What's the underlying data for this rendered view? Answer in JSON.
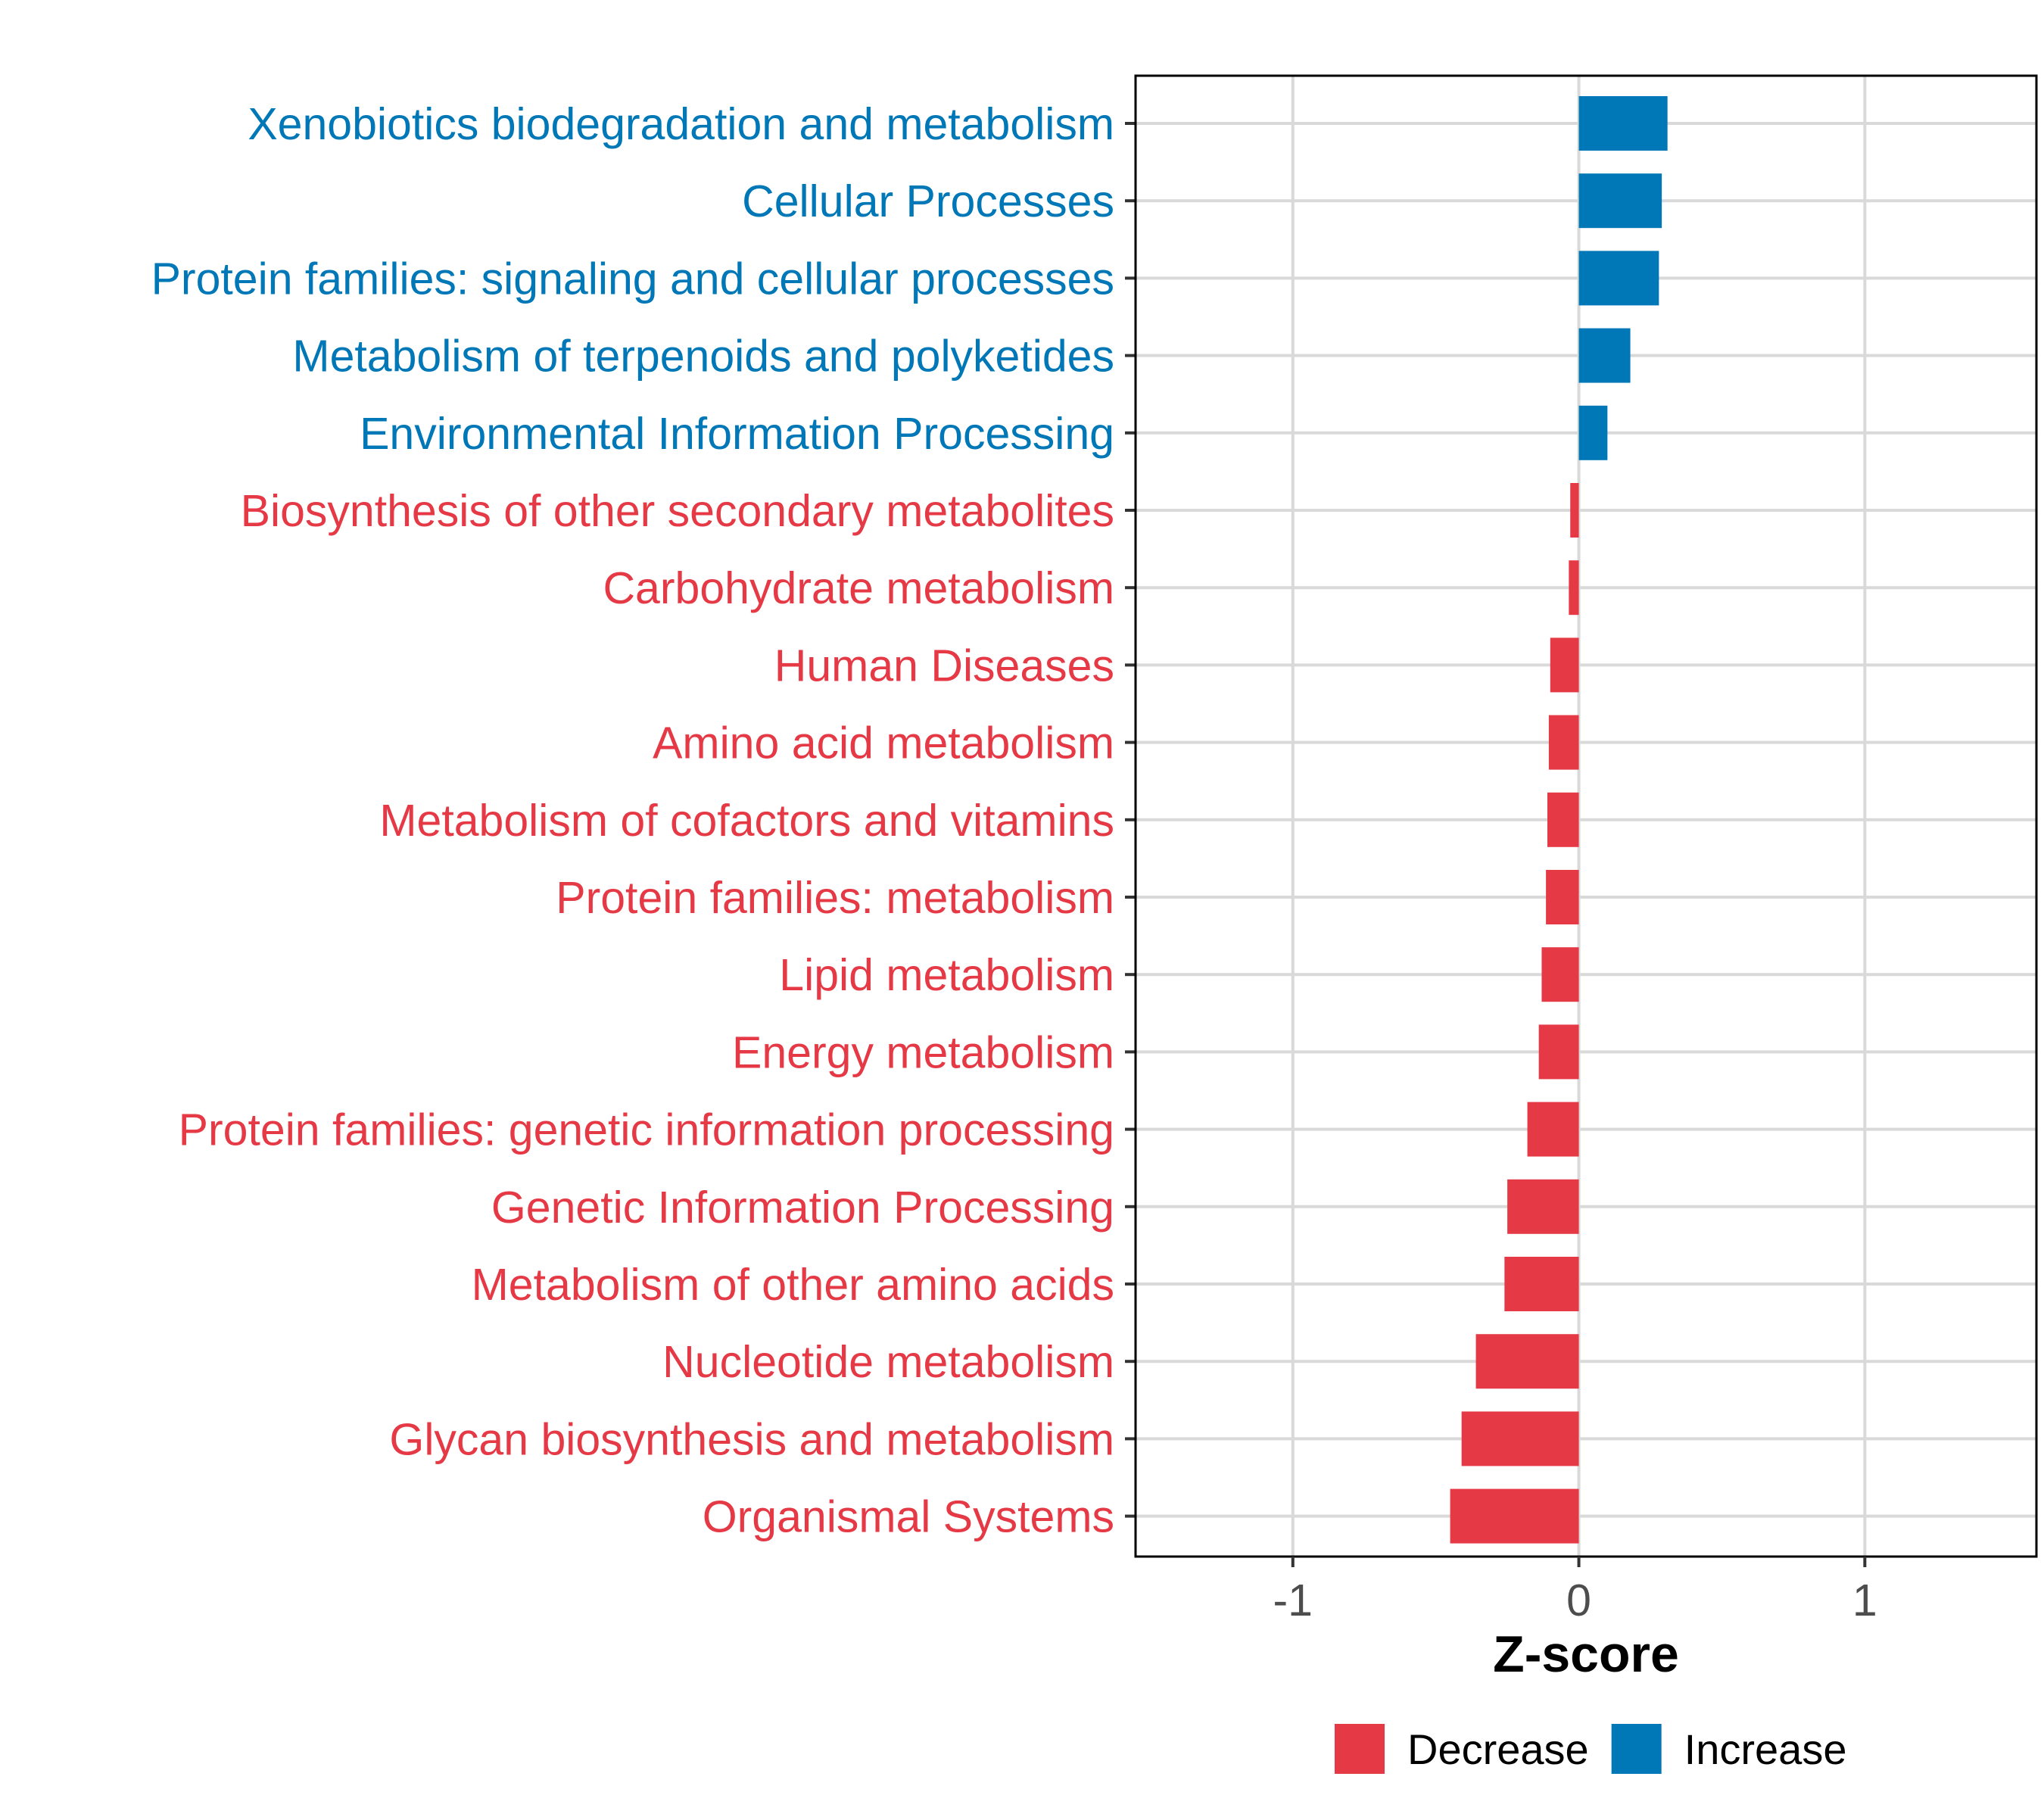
{
  "colors": {
    "Decrease": "#e63946",
    "Increase": "#0077b6",
    "grid": "#d9d9d9",
    "axis": "#000000"
  },
  "chart_data": {
    "type": "bar",
    "orientation": "horizontal",
    "title": "",
    "xlabel": "Z-score",
    "ylabel": "",
    "xlim": [
      -1.55,
      1.6
    ],
    "x_ticks": [
      -1,
      0,
      1
    ],
    "x_tick_labels": [
      "-1",
      "0",
      "1"
    ],
    "grid": true,
    "legend_position": "bottom",
    "legend": [
      "Decrease",
      "Increase"
    ],
    "categories": [
      "Xenobiotics biodegradation and metabolism",
      "Cellular Processes",
      "Protein families: signaling and cellular processes",
      "Metabolism of terpenoids and polyketides",
      "Environmental Information Processing",
      "Biosynthesis of other secondary metabolites",
      "Carbohydrate metabolism",
      "Human Diseases",
      "Amino acid metabolism",
      "Metabolism of cofactors and vitamins",
      "Protein families: metabolism",
      "Lipid metabolism",
      "Energy metabolism",
      "Protein families: genetic information processing",
      "Genetic Information Processing",
      "Metabolism of other amino acids",
      "Nucleotide metabolism",
      "Glycan biosynthesis and metabolism",
      "Organismal Systems"
    ],
    "values": [
      0.31,
      0.29,
      0.28,
      0.18,
      0.1,
      -0.03,
      -0.035,
      -0.1,
      -0.105,
      -0.11,
      -0.115,
      -0.13,
      -0.14,
      -0.18,
      -0.25,
      -0.26,
      -0.36,
      -0.41,
      -0.45
    ],
    "groups": [
      "Increase",
      "Increase",
      "Increase",
      "Increase",
      "Increase",
      "Decrease",
      "Decrease",
      "Decrease",
      "Decrease",
      "Decrease",
      "Decrease",
      "Decrease",
      "Decrease",
      "Decrease",
      "Decrease",
      "Decrease",
      "Decrease",
      "Decrease",
      "Decrease"
    ]
  }
}
